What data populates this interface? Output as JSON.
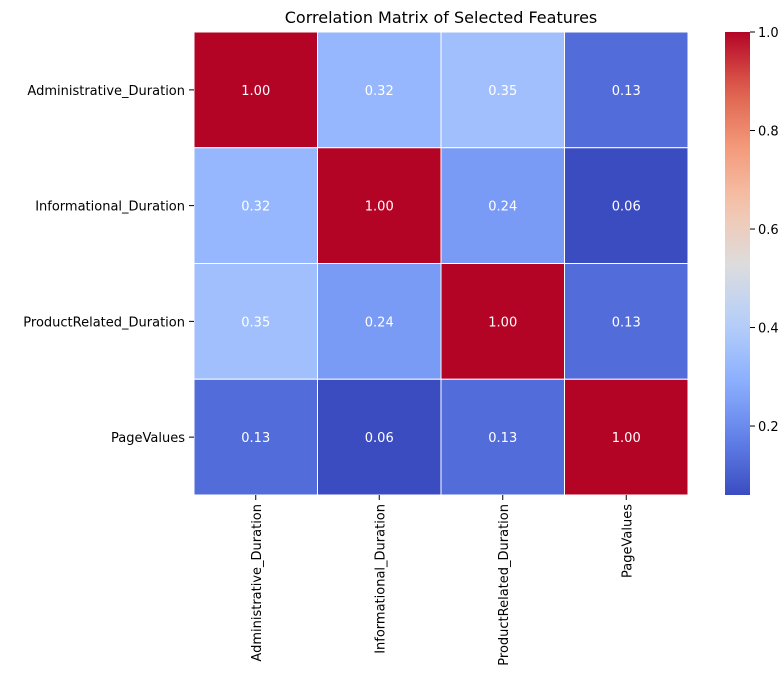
{
  "chart_data": {
    "type": "heatmap",
    "title": "Correlation Matrix of Selected Features",
    "xlabel": "",
    "ylabel": "",
    "rows": [
      "Administrative_Duration",
      "Informational_Duration",
      "ProductRelated_Duration",
      "PageValues"
    ],
    "columns": [
      "Administrative_Duration",
      "Informational_Duration",
      "ProductRelated_Duration",
      "PageValues"
    ],
    "values": [
      [
        1.0,
        0.32,
        0.35,
        0.13
      ],
      [
        0.32,
        1.0,
        0.24,
        0.06
      ],
      [
        0.35,
        0.24,
        1.0,
        0.13
      ],
      [
        0.13,
        0.06,
        0.13,
        1.0
      ]
    ],
    "annotation_format": "0.00",
    "colormap": "coolwarm",
    "colorbar": {
      "range": [
        0.06,
        1.0
      ],
      "ticks": [
        0.2,
        0.4,
        0.6,
        0.8,
        1.0
      ],
      "tick_labels": [
        "0.2",
        "0.4",
        "0.6",
        "0.8",
        "1.0"
      ]
    },
    "cell_border_color": "#ffffff"
  }
}
